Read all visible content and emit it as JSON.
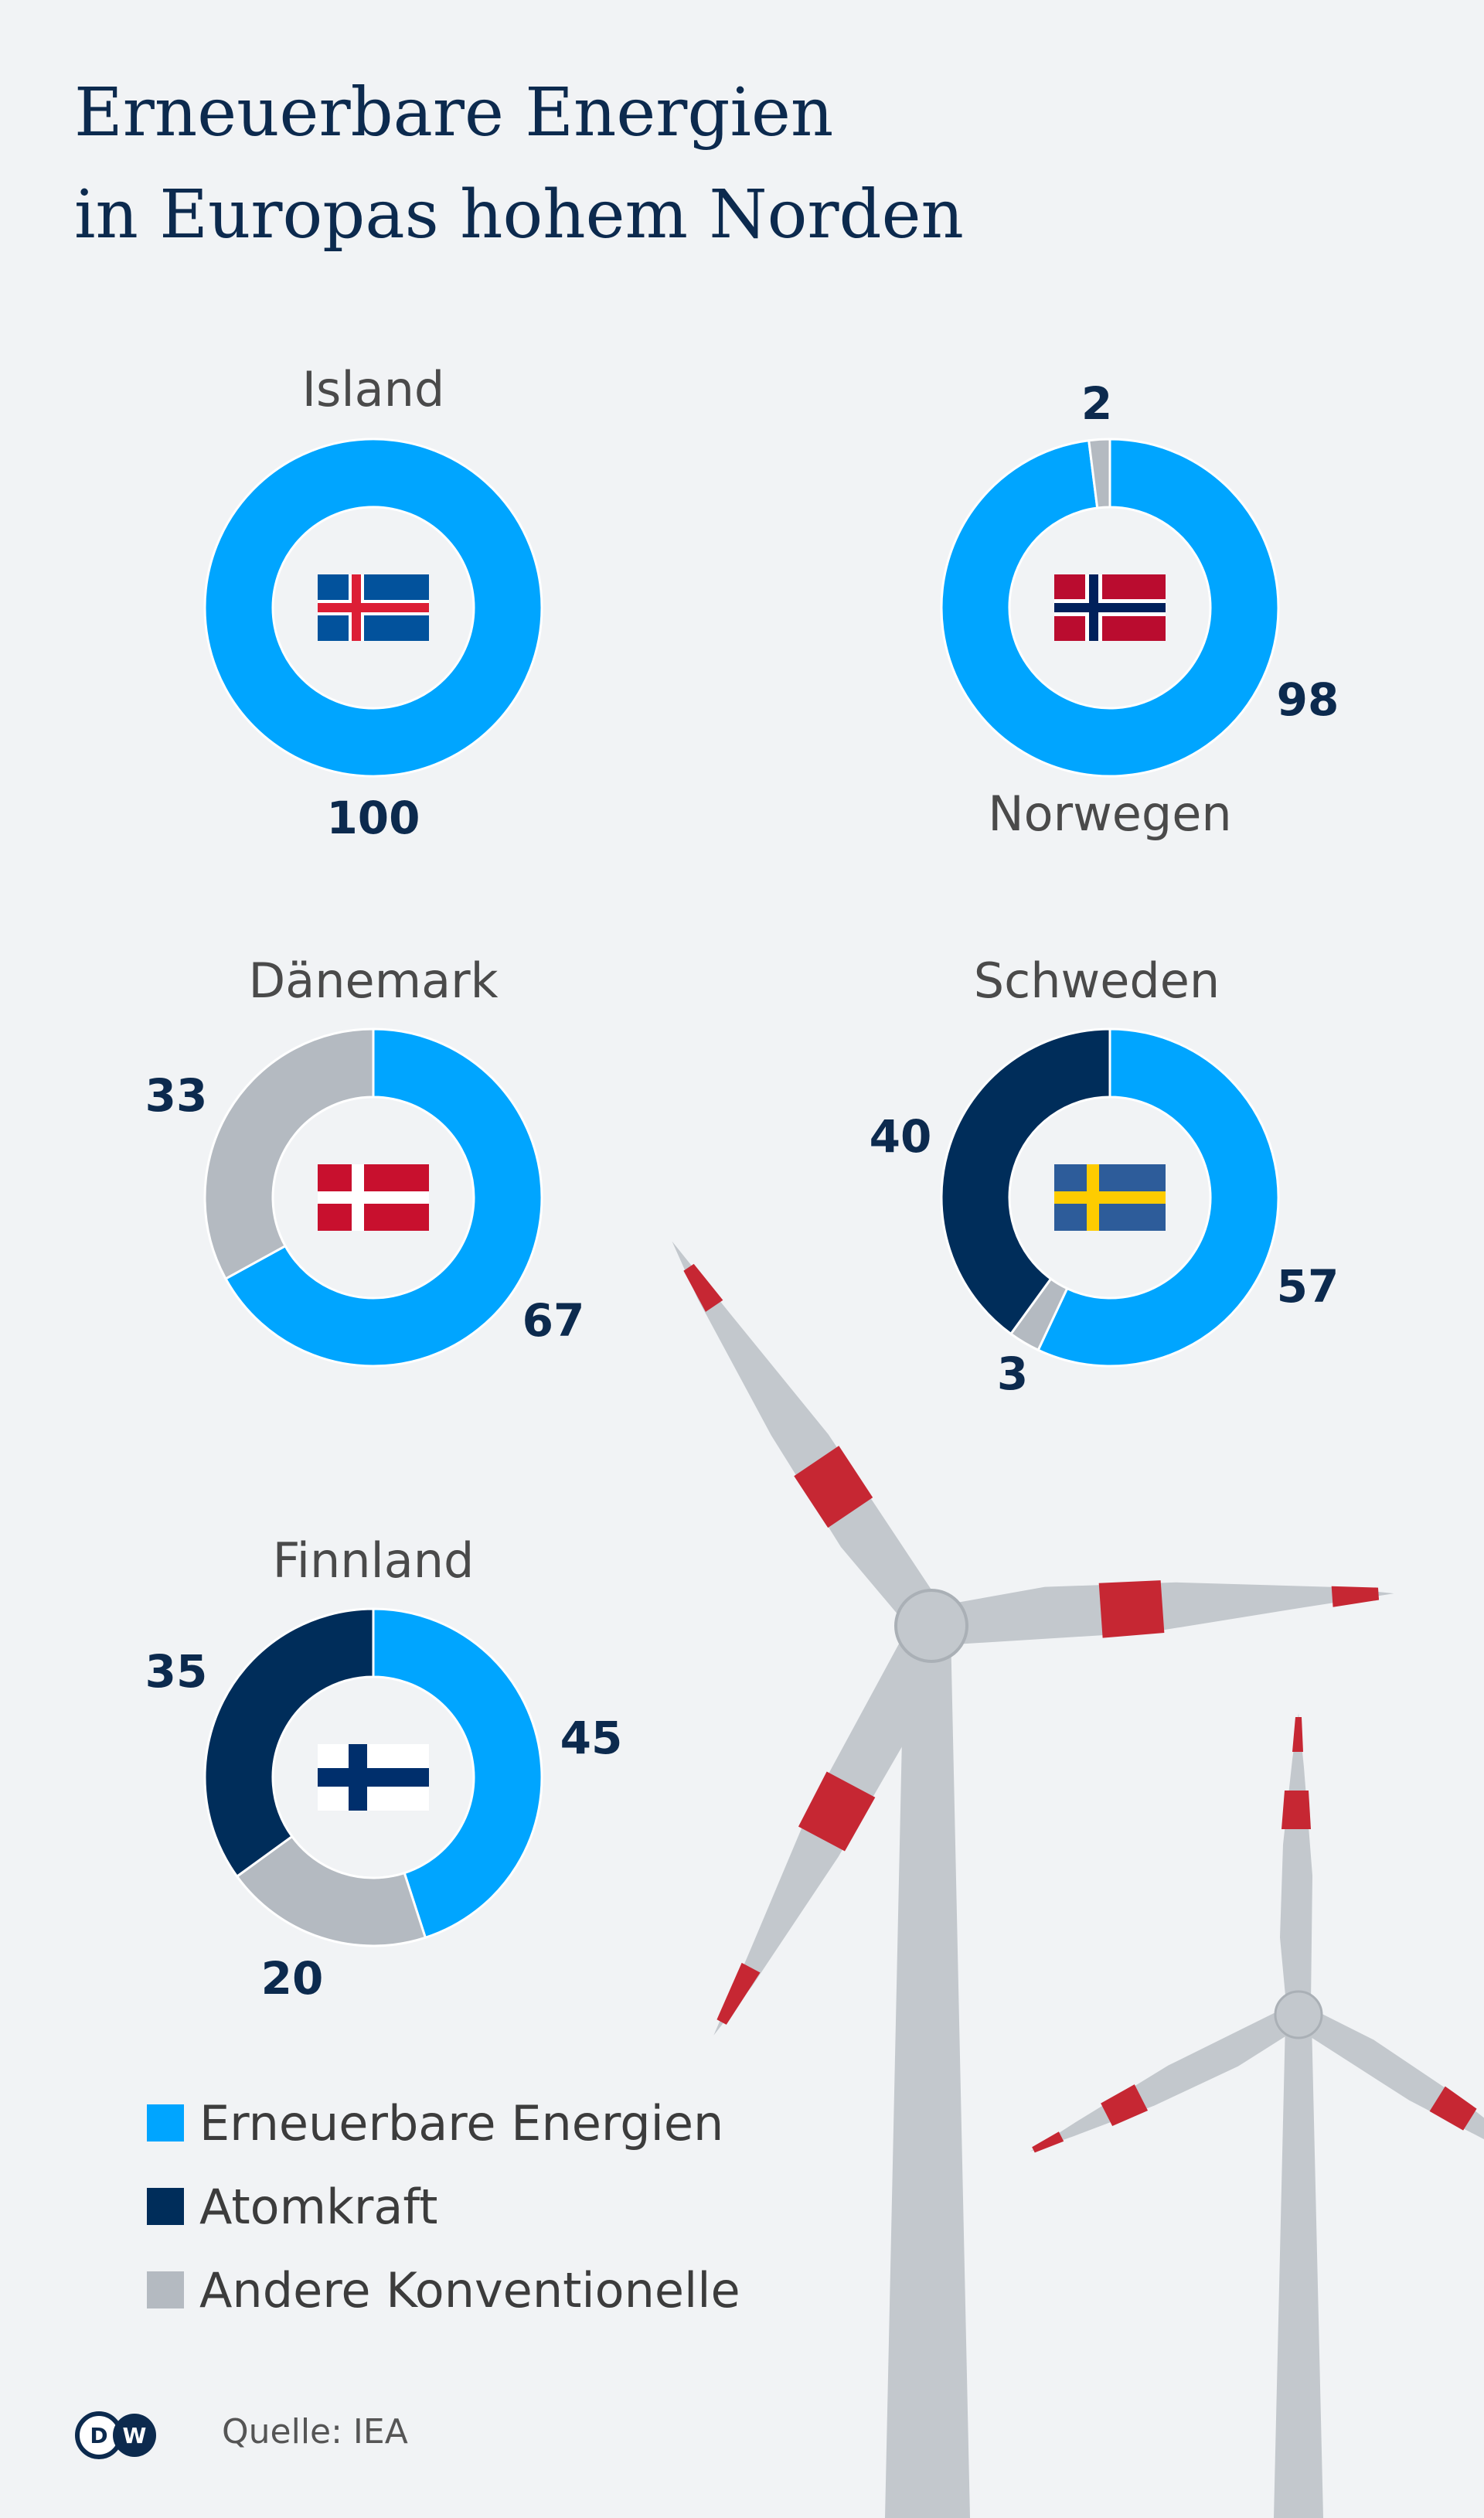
{
  "title_lines": [
    "Erneuerbare Energien",
    "in Europas hohem Norden"
  ],
  "colors": {
    "renewable": "#00a5ff",
    "nuclear": "#002d5a",
    "other": "#b4bac1",
    "text_dark": "#0c2a4e",
    "label_grey": "#4a4a4a",
    "background": "#f1f3f5",
    "turbine": "#c3c8cd",
    "turbine_stripe": "#c62733"
  },
  "legend": [
    {
      "label": "Erneuerbare Energien",
      "color": "#00a5ff"
    },
    {
      "label": "Atomkraft",
      "color": "#002d5a"
    },
    {
      "label": "Andere Konventionelle",
      "color": "#b4bac1"
    }
  ],
  "source": "Quelle: IEA",
  "logo_text": "DW",
  "chart_data": [
    {
      "type": "pie",
      "title": "Island",
      "flag": "iceland-flag-icon",
      "categories": [
        "Erneuerbare Energien"
      ],
      "values": [
        100
      ],
      "labels": [
        "100"
      ]
    },
    {
      "type": "pie",
      "title": "Norwegen",
      "flag": "norway-flag-icon",
      "categories": [
        "Erneuerbare Energien",
        "Andere Konventionelle"
      ],
      "values": [
        98,
        2
      ],
      "labels": [
        "98",
        "2"
      ]
    },
    {
      "type": "pie",
      "title": "Dänemark",
      "flag": "denmark-flag-icon",
      "categories": [
        "Erneuerbare Energien",
        "Andere Konventionelle"
      ],
      "values": [
        67,
        33
      ],
      "labels": [
        "67",
        "33"
      ]
    },
    {
      "type": "pie",
      "title": "Schweden",
      "flag": "sweden-flag-icon",
      "categories": [
        "Erneuerbare Energien",
        "Andere Konventionelle",
        "Atomkraft"
      ],
      "values": [
        57,
        3,
        40
      ],
      "labels": [
        "57",
        "3",
        "40"
      ]
    },
    {
      "type": "pie",
      "title": "Finnland",
      "flag": "finland-flag-icon",
      "categories": [
        "Erneuerbare Energien",
        "Andere Konventionelle",
        "Atomkraft"
      ],
      "values": [
        45,
        20,
        35
      ],
      "labels": [
        "45",
        "20",
        "35"
      ]
    }
  ]
}
